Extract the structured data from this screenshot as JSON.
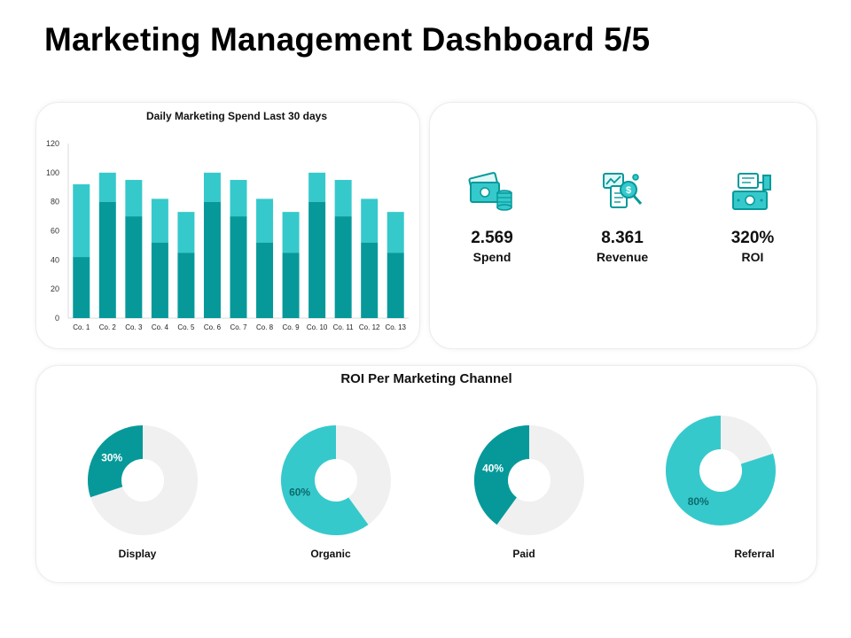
{
  "page": {
    "title": "Marketing Management Dashboard 5/5"
  },
  "colors": {
    "dark_teal": "#07999a",
    "light_teal": "#36c9cc",
    "grey": "#f0f0f0"
  },
  "kpis": [
    {
      "value": "2.569",
      "label": "Spend",
      "icon": "money-coins-icon"
    },
    {
      "value": "8.361",
      "label": "Revenue",
      "icon": "chart-magnifier-icon"
    },
    {
      "value": "320%",
      "label": "ROI",
      "icon": "hand-money-icon"
    }
  ],
  "chart_data": [
    {
      "type": "bar",
      "stacked": true,
      "title": "Daily Marketing Spend Last 30 days",
      "categories": [
        "Co. 1",
        "Co. 2",
        "Co. 3",
        "Co. 4",
        "Co. 5",
        "Co. 6",
        "Co. 7",
        "Co. 8",
        "Co. 9",
        "Co. 10",
        "Co. 11",
        "Co. 12",
        "Co. 13"
      ],
      "series": [
        {
          "values": [
            42,
            80,
            70,
            52,
            45,
            80,
            70,
            52,
            45,
            80,
            70,
            52,
            45
          ],
          "color": "#07999a"
        },
        {
          "values": [
            50,
            20,
            25,
            30,
            28,
            20,
            25,
            30,
            28,
            20,
            25,
            30,
            28
          ],
          "color": "#36c9cc"
        }
      ],
      "ylim": [
        0,
        120
      ],
      "yticks": [
        0,
        20,
        40,
        60,
        80,
        100,
        120
      ],
      "grid": false,
      "legend": "none"
    },
    {
      "type": "pie",
      "title": "ROI Per Marketing Channel",
      "donut": true,
      "slices": [
        {
          "label": "Display",
          "value": 30,
          "value_label": "30%",
          "color": "#07999a"
        },
        {
          "label": "Organic",
          "value": 60,
          "value_label": "60%",
          "color": "#36c9cc"
        },
        {
          "label": "Paid",
          "value": 40,
          "value_label": "40%",
          "color": "#07999a"
        },
        {
          "label": "Referral",
          "value": 80,
          "value_label": "80%",
          "color": "#36c9cc"
        }
      ]
    }
  ]
}
